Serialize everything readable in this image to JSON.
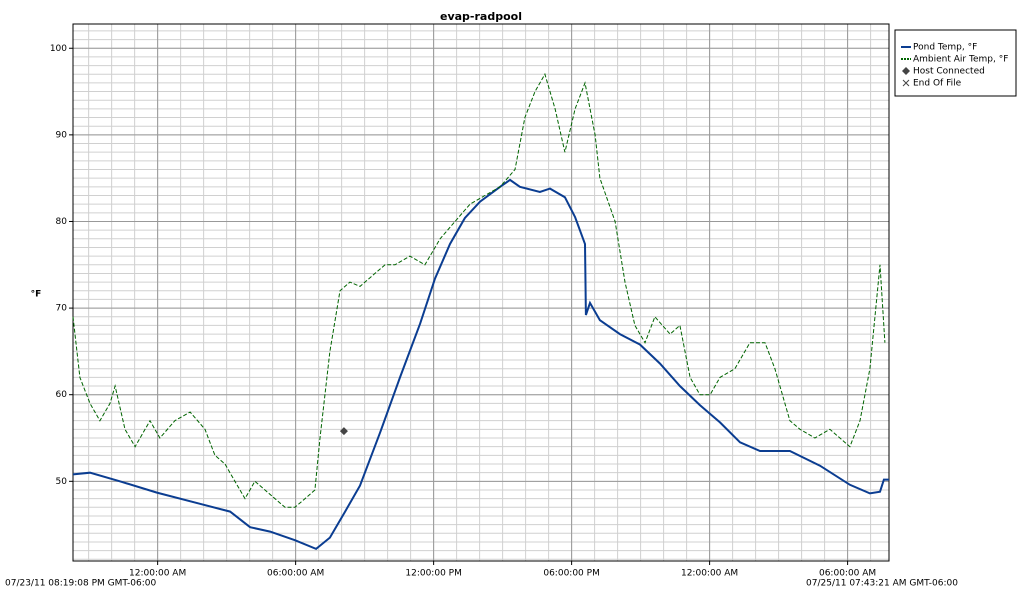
{
  "chart_data": {
    "type": "line",
    "title": "evap-radpool",
    "y_label": "°F",
    "start_label": "07/23/11 08:19:08 PM GMT-06:00",
    "end_label": "07/25/11 07:43:21 AM GMT-06:00",
    "xlim": [
      20.32,
      55.8
    ],
    "ylim": [
      40.8,
      102.8
    ],
    "xticks": [
      {
        "value": 24,
        "label": "12:00:00 AM"
      },
      {
        "value": 30,
        "label": "06:00:00 AM"
      },
      {
        "value": 36,
        "label": "12:00:00 PM"
      },
      {
        "value": 42,
        "label": "06:00:00 PM"
      },
      {
        "value": 48,
        "label": "12:00:00 AM"
      },
      {
        "value": 54,
        "label": "06:00:00 AM"
      }
    ],
    "yticks": [
      50,
      60,
      70,
      80,
      90,
      100
    ],
    "grid": true,
    "legend": "right",
    "series": [
      {
        "name": "Pond Temp, °F",
        "color": "#0b3d91",
        "style": "solid",
        "x": [
          20.32,
          21.06,
          22.36,
          23.97,
          25.84,
          27.15,
          28.02,
          28.89,
          29.97,
          30.89,
          31.49,
          32.15,
          32.8,
          33.67,
          34.54,
          35.41,
          36.06,
          36.71,
          37.36,
          38.02,
          38.89,
          39.32,
          39.75,
          40.62,
          41.06,
          41.71,
          42.15,
          42.58,
          42.62,
          42.8,
          43.23,
          44.1,
          44.97,
          45.84,
          46.71,
          47.58,
          48.45,
          49.32,
          50.19,
          51.49,
          52.8,
          54.1,
          54.97,
          55.41,
          55.58,
          55.8
        ],
        "values": [
          50.8,
          51,
          50,
          48.7,
          47.4,
          46.5,
          44.7,
          44.2,
          43.2,
          42.2,
          43.5,
          46.5,
          49.5,
          55.6,
          62,
          68.2,
          73.4,
          77.4,
          80.4,
          82.3,
          84,
          84.8,
          84,
          83.4,
          83.8,
          82.8,
          80.5,
          77.4,
          69.2,
          70.6,
          68.6,
          67,
          65.8,
          63.6,
          61,
          58.8,
          56.8,
          54.5,
          53.5,
          53.5,
          51.8,
          49.6,
          48.6,
          48.8,
          50.2,
          50.2
        ]
      },
      {
        "name": "Ambient Air Temp, °F",
        "color": "#006400",
        "style": "dashed",
        "x": [
          20.32,
          20.62,
          21.06,
          21.49,
          21.93,
          22.15,
          22.58,
          23.02,
          23.67,
          24.1,
          24.75,
          25.41,
          26.06,
          26.49,
          26.93,
          27.36,
          27.8,
          28.23,
          28.67,
          29.1,
          29.54,
          29.97,
          30.41,
          30.84,
          31.06,
          31.49,
          31.93,
          32.36,
          32.8,
          33.45,
          33.89,
          34.32,
          34.97,
          35.62,
          36.28,
          36.93,
          37.58,
          38.23,
          38.89,
          39.54,
          39.97,
          40.41,
          40.84,
          41.28,
          41.71,
          42.15,
          42.58,
          43.02,
          43.23,
          43.89,
          44.32,
          44.75,
          45.19,
          45.62,
          46.28,
          46.71,
          47.15,
          47.58,
          48.02,
          48.45,
          49.1,
          49.75,
          50.41,
          50.84,
          51.49,
          51.93,
          52.58,
          53.23,
          54.1,
          54.54,
          54.97,
          55.41,
          55.62
        ],
        "values": [
          69,
          62,
          59,
          57,
          59,
          61,
          56,
          54,
          57,
          55,
          57,
          58,
          56,
          53,
          52,
          50,
          48,
          50,
          49,
          48,
          47,
          47,
          48,
          49,
          55,
          65,
          72,
          73,
          72.5,
          74,
          75,
          75,
          76,
          75,
          78,
          80,
          82,
          83,
          84,
          86,
          92,
          95,
          97,
          93,
          88,
          93,
          96,
          90,
          85,
          80,
          73,
          68,
          66,
          69,
          67,
          68,
          62,
          60,
          60,
          62,
          63,
          66,
          66,
          63,
          57,
          56,
          55,
          56,
          54,
          57,
          63,
          75,
          66
        ]
      },
      {
        "name": "Host Connected",
        "color": "#444444",
        "style": "diamond",
        "x": [
          32.1
        ],
        "values": [
          55.8
        ]
      },
      {
        "name": "End Of File",
        "color": "#444444",
        "style": "cross",
        "x": [],
        "values": []
      }
    ]
  }
}
